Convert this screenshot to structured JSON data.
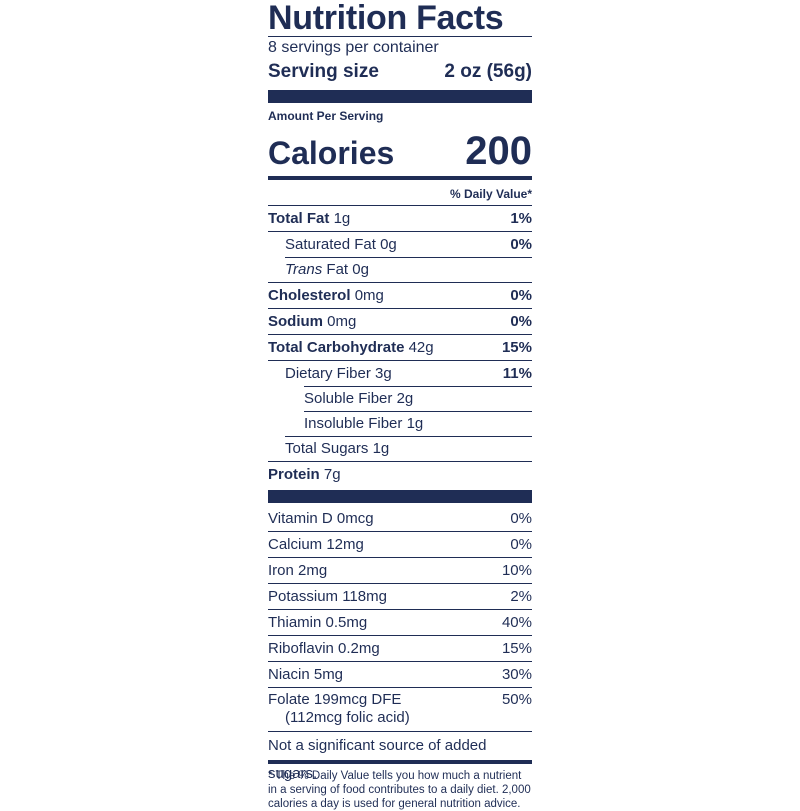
{
  "label": {
    "title": "Nutrition Facts",
    "servings_per_container": "8 servings per container",
    "serving_size_label": "Serving size",
    "serving_size_value": "2 oz (56g)",
    "amount_per_serving": "Amount Per Serving",
    "calories_label": "Calories",
    "calories_value": "200",
    "daily_value_header": "% Daily Value*",
    "nutrients": [
      {
        "name": "Total Fat",
        "amount": "1g",
        "dv": "1%"
      },
      {
        "name": "Saturated Fat",
        "amount": "0g",
        "dv": "0%"
      },
      {
        "name": "Trans",
        "amount": "Fat 0g",
        "dv": ""
      },
      {
        "name": "Cholesterol",
        "amount": "0mg",
        "dv": "0%"
      },
      {
        "name": "Sodium",
        "amount": "0mg",
        "dv": "0%"
      },
      {
        "name": "Total Carbohydrate",
        "amount": "42g",
        "dv": "15%"
      },
      {
        "name": "Dietary Fiber",
        "amount": "3g",
        "dv": "11%"
      },
      {
        "name": "Soluble Fiber",
        "amount": "2g",
        "dv": ""
      },
      {
        "name": "Insoluble Fiber",
        "amount": "1g",
        "dv": ""
      },
      {
        "name": "Total Sugars",
        "amount": "1g",
        "dv": ""
      },
      {
        "name": "Protein",
        "amount": "7g",
        "dv": ""
      }
    ],
    "vitamins": [
      {
        "text": "Vitamin D 0mcg",
        "dv": "0%"
      },
      {
        "text": "Calcium 12mg",
        "dv": "0%"
      },
      {
        "text": "Iron 2mg",
        "dv": "10%"
      },
      {
        "text": "Potassium 118mg",
        "dv": "2%"
      },
      {
        "text": "Thiamin 0.5mg",
        "dv": "40%"
      },
      {
        "text": "Riboflavin 0.2mg",
        "dv": "15%"
      },
      {
        "text": "Niacin 5mg",
        "dv": "30%"
      },
      {
        "text": "Folate 199mcg DFE",
        "text2": "(112mcg folic acid)",
        "dv": "50%"
      }
    ],
    "added_sugars_note": "Not a significant source of added sugars.",
    "footnote": "* The % Daily Value tells you how much a nutrient in a serving of food contributes to a daily diet. 2,000 calories a day is used for general nutrition advice."
  }
}
